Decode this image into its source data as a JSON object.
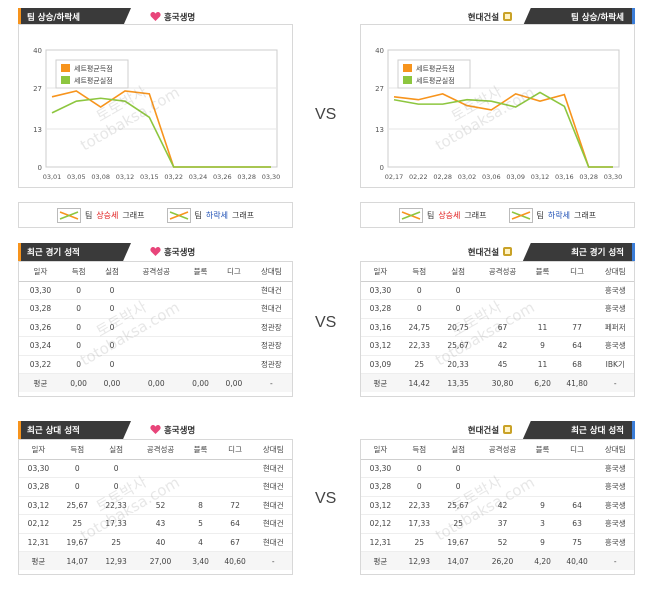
{
  "vs_label": "VS",
  "left_team": "흥국생명",
  "right_team": "현대건설",
  "watermark": [
    "토토박사",
    "totobaksa.com"
  ],
  "chart_section": {
    "header": "팀 상승/하락세",
    "legend_up": {
      "prefix": "팀 ",
      "word": "상승세",
      "suffix": " 그래프"
    },
    "legend_down": {
      "prefix": "팀 ",
      "word": "하락세",
      "suffix": " 그래프"
    }
  },
  "chart_data": [
    {
      "type": "line",
      "team": "흥국생명",
      "categories": [
        "03,01",
        "03,05",
        "03,08",
        "03,12",
        "03,15",
        "03,22",
        "03,24",
        "03,26",
        "03,28",
        "03,30"
      ],
      "yticks": [
        0,
        13,
        27,
        40
      ],
      "ylim": [
        0,
        40
      ],
      "series": [
        {
          "name": "세트평균득점",
          "color": "#f7941d",
          "values": [
            24,
            26,
            20.5,
            26,
            25,
            0,
            0,
            0,
            0,
            0
          ]
        },
        {
          "name": "세트평균실점",
          "color": "#8dc63f",
          "values": [
            18.5,
            22.5,
            23.5,
            22.5,
            17,
            0,
            0,
            0,
            0,
            0
          ]
        }
      ]
    },
    {
      "type": "line",
      "team": "현대건설",
      "categories": [
        "02,17",
        "02,22",
        "02,28",
        "03,02",
        "03,06",
        "03,09",
        "03,12",
        "03,16",
        "03,28",
        "03,30"
      ],
      "yticks": [
        0,
        13,
        27,
        40
      ],
      "ylim": [
        0,
        40
      ],
      "series": [
        {
          "name": "세트평균득점",
          "color": "#f7941d",
          "values": [
            24,
            23,
            25,
            21,
            19.5,
            25,
            22.5,
            24.75,
            0,
            0
          ]
        },
        {
          "name": "세트평균실점",
          "color": "#8dc63f",
          "values": [
            23,
            21.5,
            21.5,
            23,
            22.5,
            20.5,
            25.5,
            20.75,
            0,
            0
          ]
        }
      ]
    }
  ],
  "recent": {
    "header": "최근 경기 성적",
    "columns": [
      "일자",
      "득점",
      "실점",
      "공격성공",
      "블록",
      "디그",
      "상대팀"
    ],
    "left": {
      "rows": [
        [
          "03,30",
          "0",
          "0",
          "",
          "",
          "",
          "현대건"
        ],
        [
          "03,28",
          "0",
          "0",
          "",
          "",
          "",
          "현대건"
        ],
        [
          "03,26",
          "0",
          "0",
          "",
          "",
          "",
          "정관장"
        ],
        [
          "03,24",
          "0",
          "0",
          "",
          "",
          "",
          "정관장"
        ],
        [
          "03,22",
          "0",
          "0",
          "",
          "",
          "",
          "정관장"
        ]
      ],
      "avg": [
        "평균",
        "0,00",
        "0,00",
        "0,00",
        "0,00",
        "0,00",
        "-"
      ]
    },
    "right": {
      "rows": [
        [
          "03,30",
          "0",
          "0",
          "",
          "",
          "",
          "흥국생"
        ],
        [
          "03,28",
          "0",
          "0",
          "",
          "",
          "",
          "흥국생"
        ],
        [
          "03,16",
          "24,75",
          "20,75",
          "67",
          "11",
          "77",
          "페퍼저"
        ],
        [
          "03,12",
          "22,33",
          "25,67",
          "42",
          "9",
          "64",
          "흥국생"
        ],
        [
          "03,09",
          "25",
          "20,33",
          "45",
          "11",
          "68",
          "IBK기"
        ]
      ],
      "avg": [
        "평균",
        "14,42",
        "13,35",
        "30,80",
        "6,20",
        "41,80",
        "-"
      ]
    }
  },
  "h2h": {
    "header": "최근 상대 성적",
    "columns": [
      "일자",
      "득점",
      "실점",
      "공격성공",
      "블록",
      "디그",
      "상대팀"
    ],
    "left": {
      "rows": [
        [
          "03,30",
          "0",
          "0",
          "",
          "",
          "",
          "현대건"
        ],
        [
          "03,28",
          "0",
          "0",
          "",
          "",
          "",
          "현대건"
        ],
        [
          "03,12",
          "25,67",
          "22,33",
          "52",
          "8",
          "72",
          "현대건"
        ],
        [
          "02,12",
          "25",
          "17,33",
          "43",
          "5",
          "64",
          "현대건"
        ],
        [
          "12,31",
          "19,67",
          "25",
          "40",
          "4",
          "67",
          "현대건"
        ]
      ],
      "avg": [
        "평균",
        "14,07",
        "12,93",
        "27,00",
        "3,40",
        "40,60",
        "-"
      ]
    },
    "right": {
      "rows": [
        [
          "03,30",
          "0",
          "0",
          "",
          "",
          "",
          "흥국생"
        ],
        [
          "03,28",
          "0",
          "0",
          "",
          "",
          "",
          "흥국생"
        ],
        [
          "03,12",
          "22,33",
          "25,67",
          "42",
          "9",
          "64",
          "흥국생"
        ],
        [
          "02,12",
          "17,33",
          "25",
          "37",
          "3",
          "63",
          "흥국생"
        ],
        [
          "12,31",
          "25",
          "19,67",
          "52",
          "9",
          "75",
          "흥국생"
        ]
      ],
      "avg": [
        "평균",
        "12,93",
        "14,07",
        "26,20",
        "4,20",
        "40,40",
        "-"
      ]
    }
  }
}
